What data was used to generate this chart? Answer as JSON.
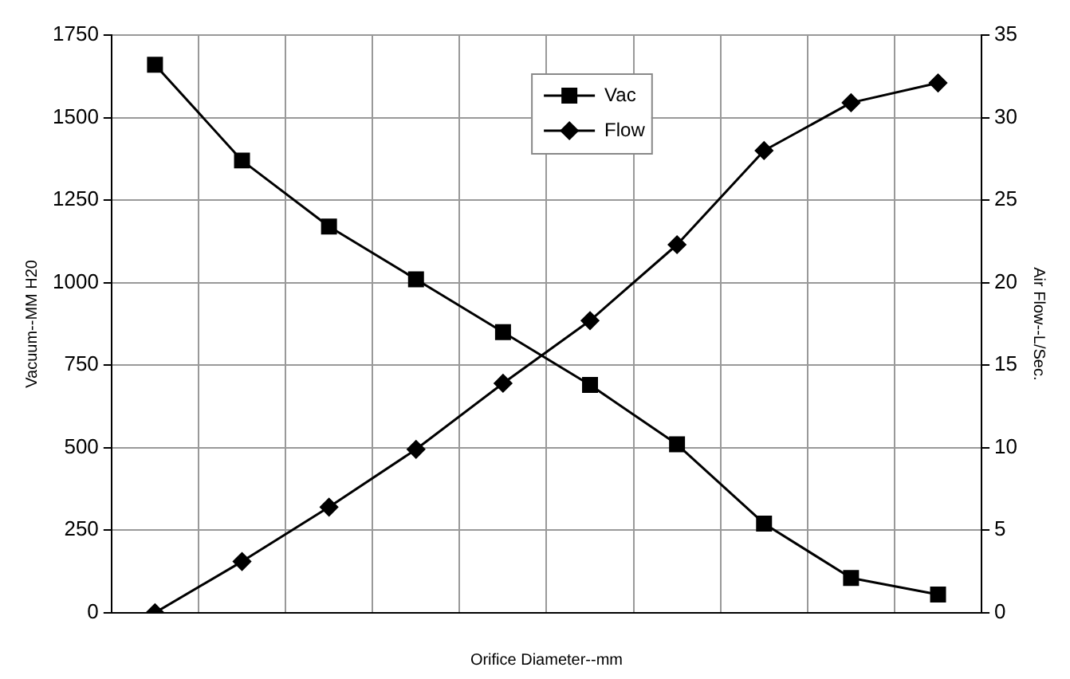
{
  "chart_data": {
    "type": "line",
    "xlabel": "Orifice Diameter--mm",
    "ylabel": "Vacuum--MM H20",
    "y2label": "Air Flow--L/Sec.",
    "categories": [
      null,
      null,
      null,
      null,
      null,
      null,
      null,
      null,
      null,
      null
    ],
    "series": [
      {
        "name": "Vac",
        "color": "#000000",
        "marker": "square",
        "values": [
          1660,
          1370,
          1170,
          1010,
          850,
          690,
          510,
          270,
          105,
          55
        ]
      },
      {
        "name": "Flow",
        "color": "#000000",
        "marker": "diamond",
        "axis": "y2",
        "values": [
          0,
          3.1,
          6.4,
          9.9,
          13.9,
          17.7,
          22.3,
          28.0,
          30.9,
          32.1
        ]
      }
    ],
    "ylim": [
      0,
      1750
    ],
    "yticks": [
      0,
      250,
      500,
      750,
      1000,
      1250,
      1500,
      1750
    ],
    "y2lim": [
      0,
      35
    ],
    "y2ticks": [
      0,
      5,
      10,
      15,
      20,
      25,
      30,
      35
    ],
    "grid": true,
    "legend": "top",
    "line_style": "solid"
  }
}
